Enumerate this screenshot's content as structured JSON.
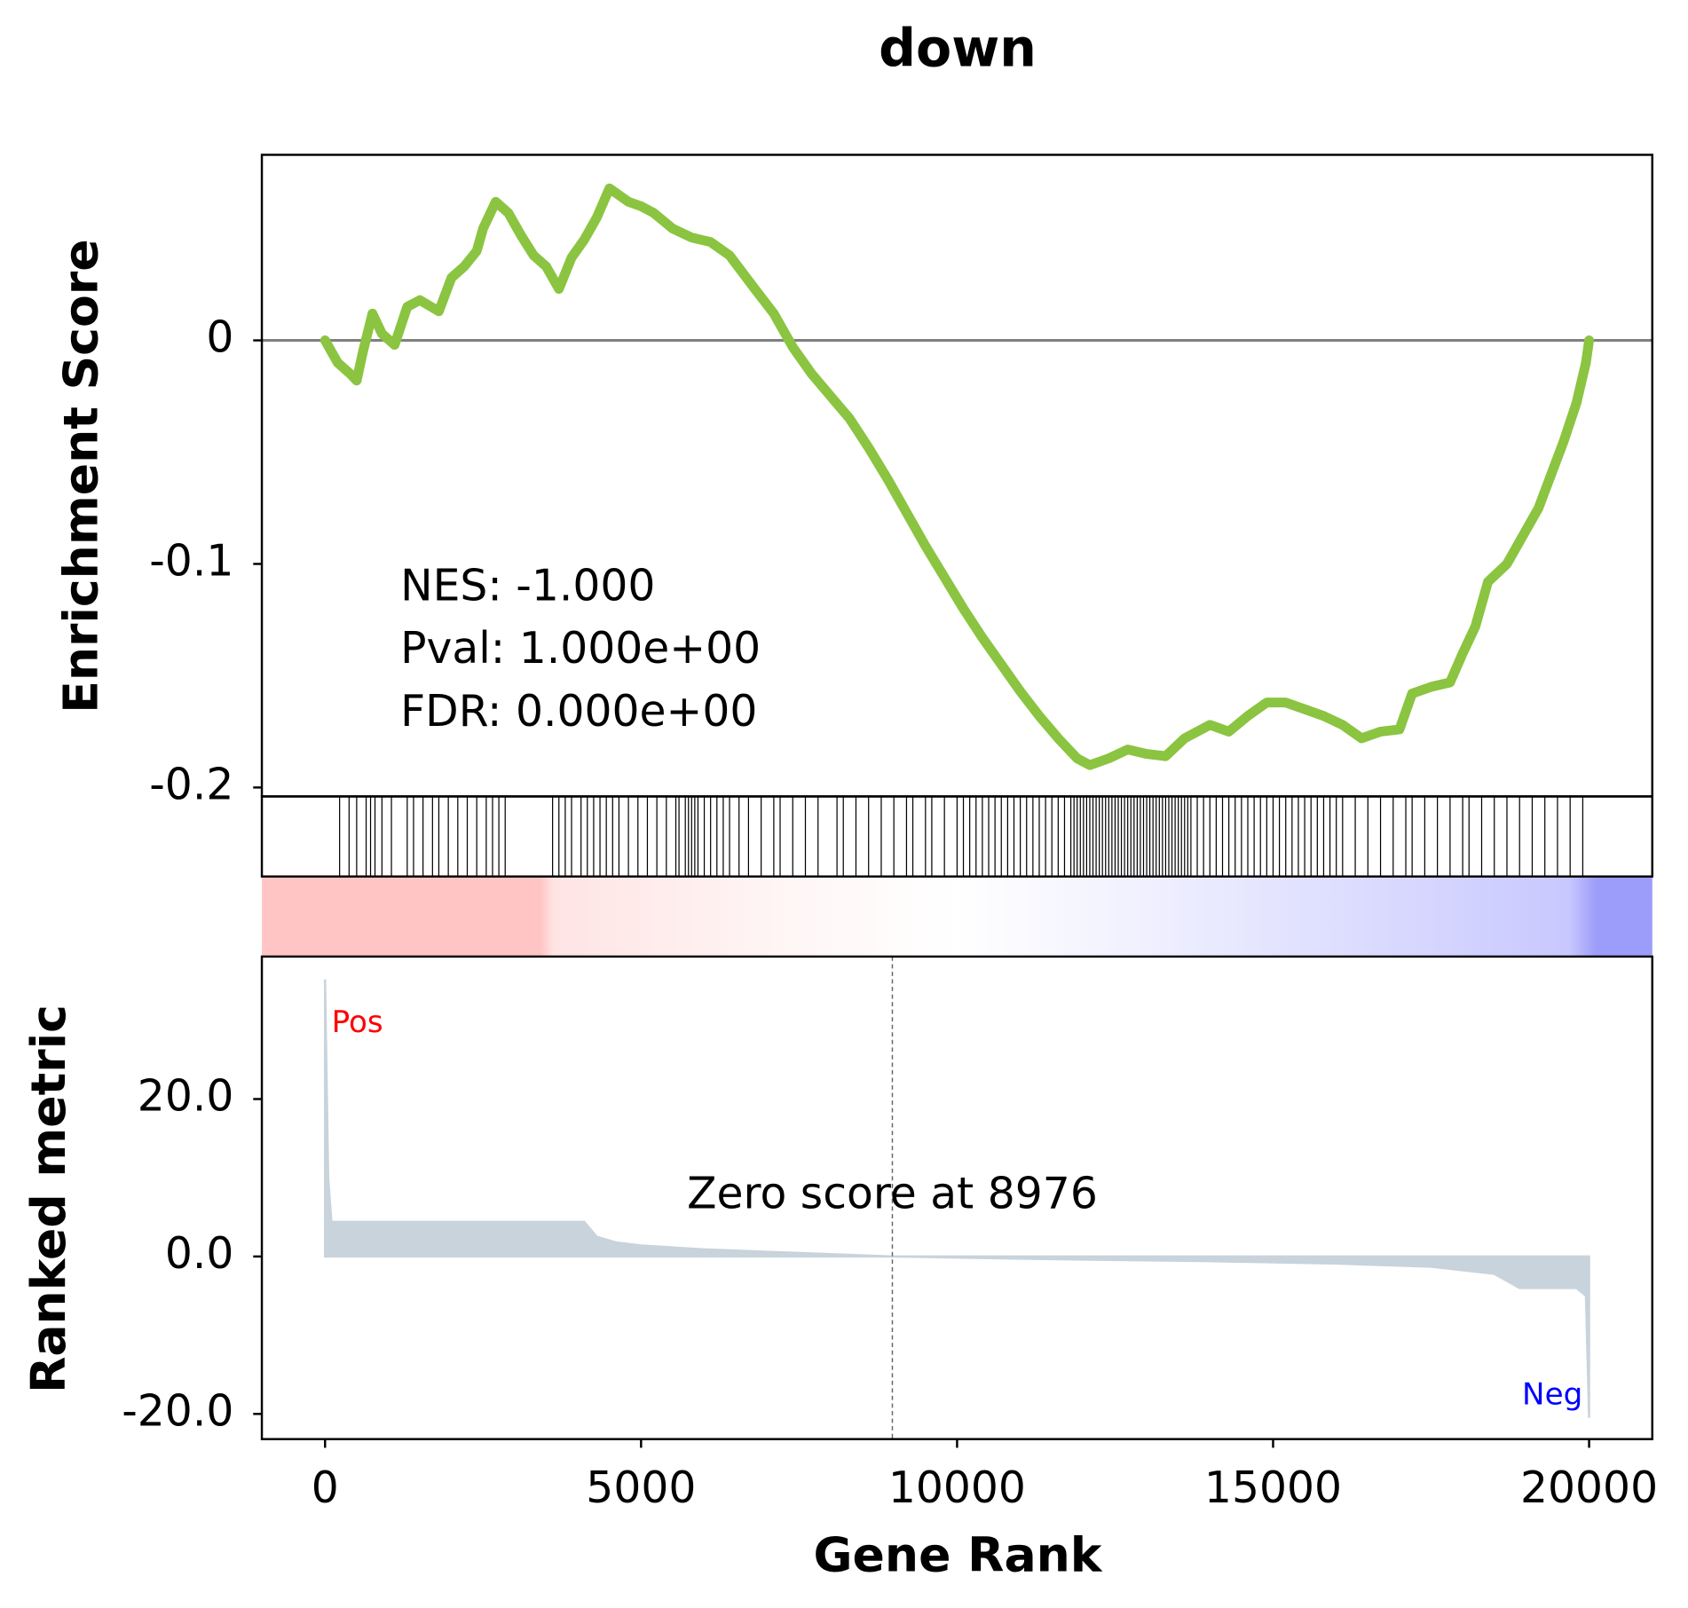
{
  "chart_data": [
    {
      "type": "line",
      "title": "down",
      "ylabel": "Enrichment Score",
      "color": "#8bc441",
      "xlim": [
        -1000,
        21000
      ],
      "ylim": [
        -0.204,
        0.083
      ],
      "yticks": [
        0.0,
        -0.1,
        -0.2
      ],
      "hline": 0,
      "annotations": [
        "NES: -1.000",
        "Pval: 1.000e+00",
        "FDR: 0.000e+00"
      ],
      "x": [
        0,
        200,
        400,
        500,
        600,
        750,
        900,
        1100,
        1300,
        1500,
        1800,
        2000,
        2200,
        2400,
        2500,
        2700,
        2900,
        3100,
        3300,
        3500,
        3700,
        3900,
        4100,
        4300,
        4500,
        4800,
        5000,
        5200,
        5500,
        5800,
        6100,
        6400,
        6800,
        7100,
        7400,
        7700,
        8000,
        8300,
        8600,
        8900,
        9200,
        9500,
        9800,
        10100,
        10400,
        10700,
        11000,
        11300,
        11600,
        11900,
        12100,
        12400,
        12700,
        13000,
        13300,
        13600,
        14000,
        14300,
        14600,
        14900,
        15200,
        15500,
        15800,
        16100,
        16400,
        16700,
        17000,
        17200,
        17500,
        17800,
        18000,
        18200,
        18400,
        18700,
        19000,
        19200,
        19400,
        19600,
        19800,
        19950,
        20000
      ],
      "values": [
        0.0,
        -0.01,
        -0.015,
        -0.018,
        -0.005,
        0.012,
        0.003,
        -0.002,
        0.015,
        0.018,
        0.013,
        0.028,
        0.033,
        0.04,
        0.05,
        0.062,
        0.057,
        0.047,
        0.038,
        0.033,
        0.023,
        0.037,
        0.045,
        0.055,
        0.068,
        0.062,
        0.06,
        0.057,
        0.05,
        0.046,
        0.044,
        0.038,
        0.023,
        0.012,
        -0.003,
        -0.015,
        -0.025,
        -0.035,
        -0.048,
        -0.062,
        -0.077,
        -0.092,
        -0.106,
        -0.12,
        -0.133,
        -0.145,
        -0.157,
        -0.168,
        -0.178,
        -0.187,
        -0.19,
        -0.187,
        -0.183,
        -0.185,
        -0.186,
        -0.178,
        -0.172,
        -0.175,
        -0.168,
        -0.162,
        -0.162,
        -0.165,
        -0.168,
        -0.172,
        -0.178,
        -0.175,
        -0.174,
        -0.158,
        -0.155,
        -0.153,
        -0.14,
        -0.128,
        -0.108,
        -0.1,
        -0.085,
        -0.075,
        -0.06,
        -0.045,
        -0.028,
        -0.01,
        0.0
      ]
    },
    {
      "type": "rug",
      "xlim": [
        -1000,
        21000
      ],
      "x": [
        230,
        380,
        500,
        650,
        720,
        790,
        900,
        1050,
        1300,
        1400,
        1550,
        1700,
        1800,
        1950,
        2100,
        2250,
        2400,
        2550,
        2650,
        2750,
        2850,
        3600,
        3700,
        3800,
        3900,
        4050,
        4150,
        4250,
        4350,
        4450,
        4550,
        4650,
        4800,
        4950,
        5100,
        5250,
        5400,
        5550,
        5600,
        5700,
        5750,
        5800,
        5850,
        5900,
        6000,
        6100,
        6200,
        6300,
        6400,
        6550,
        6700,
        6900,
        7100,
        7200,
        7400,
        7600,
        7800,
        8100,
        8200,
        8400,
        8600,
        8800,
        9000,
        9200,
        9300,
        9500,
        9600,
        9800,
        10000,
        10100,
        10200,
        10300,
        10400,
        10500,
        10600,
        10700,
        10800,
        10900,
        11000,
        11100,
        11200,
        11300,
        11400,
        11500,
        11600,
        11700,
        11800,
        11850,
        11900,
        11950,
        12000,
        12050,
        12100,
        12150,
        12200,
        12250,
        12300,
        12350,
        12400,
        12450,
        12500,
        12550,
        12600,
        12650,
        12700,
        12750,
        12800,
        12850,
        12900,
        12950,
        13000,
        13050,
        13100,
        13150,
        13200,
        13250,
        13300,
        13350,
        13400,
        13450,
        13500,
        13550,
        13600,
        13650,
        13700,
        13800,
        13900,
        14000,
        14100,
        14200,
        14300,
        14400,
        14500,
        14600,
        14700,
        14800,
        14900,
        15000,
        15100,
        15200,
        15300,
        15400,
        15500,
        15600,
        15700,
        15800,
        15900,
        16000,
        16100,
        16300,
        16500,
        16700,
        16900,
        17100,
        17200,
        17400,
        17600,
        17800,
        18000,
        18100,
        18300,
        18500,
        18700,
        18900,
        19100,
        19300,
        19500,
        19700,
        19900
      ]
    },
    {
      "type": "area",
      "ylabel": "Ranked metric",
      "xlabel": "Gene Rank",
      "color": "#c8d3dc",
      "xlim": [
        -1000,
        21000
      ],
      "xticks": [
        0,
        5000,
        10000,
        15000,
        20000
      ],
      "ylim": [
        -23.2,
        38.1
      ],
      "yticks": [
        {
          "value": 20,
          "label": "20.0"
        },
        {
          "value": 0,
          "label": "0.0"
        },
        {
          "value": -20,
          "label": "-20.0"
        }
      ],
      "annotation": "Zero score at 8976",
      "zero_rank": 8976,
      "pos_label": "Pos",
      "neg_label": "Neg",
      "x": [
        0,
        20,
        50,
        100,
        4100,
        4300,
        4600,
        5000,
        6000,
        7000,
        8000,
        8976,
        10000,
        12000,
        14000,
        16000,
        17500,
        18500,
        18900,
        19800,
        19950,
        20000
      ],
      "values": [
        35.2,
        25,
        10,
        4.4,
        4.4,
        2.5,
        1.8,
        1.4,
        0.9,
        0.6,
        0.3,
        0,
        -0.15,
        -0.4,
        -0.6,
        -0.9,
        -1.3,
        -2.2,
        -4.0,
        -4.0,
        -5,
        -20.5
      ]
    }
  ]
}
